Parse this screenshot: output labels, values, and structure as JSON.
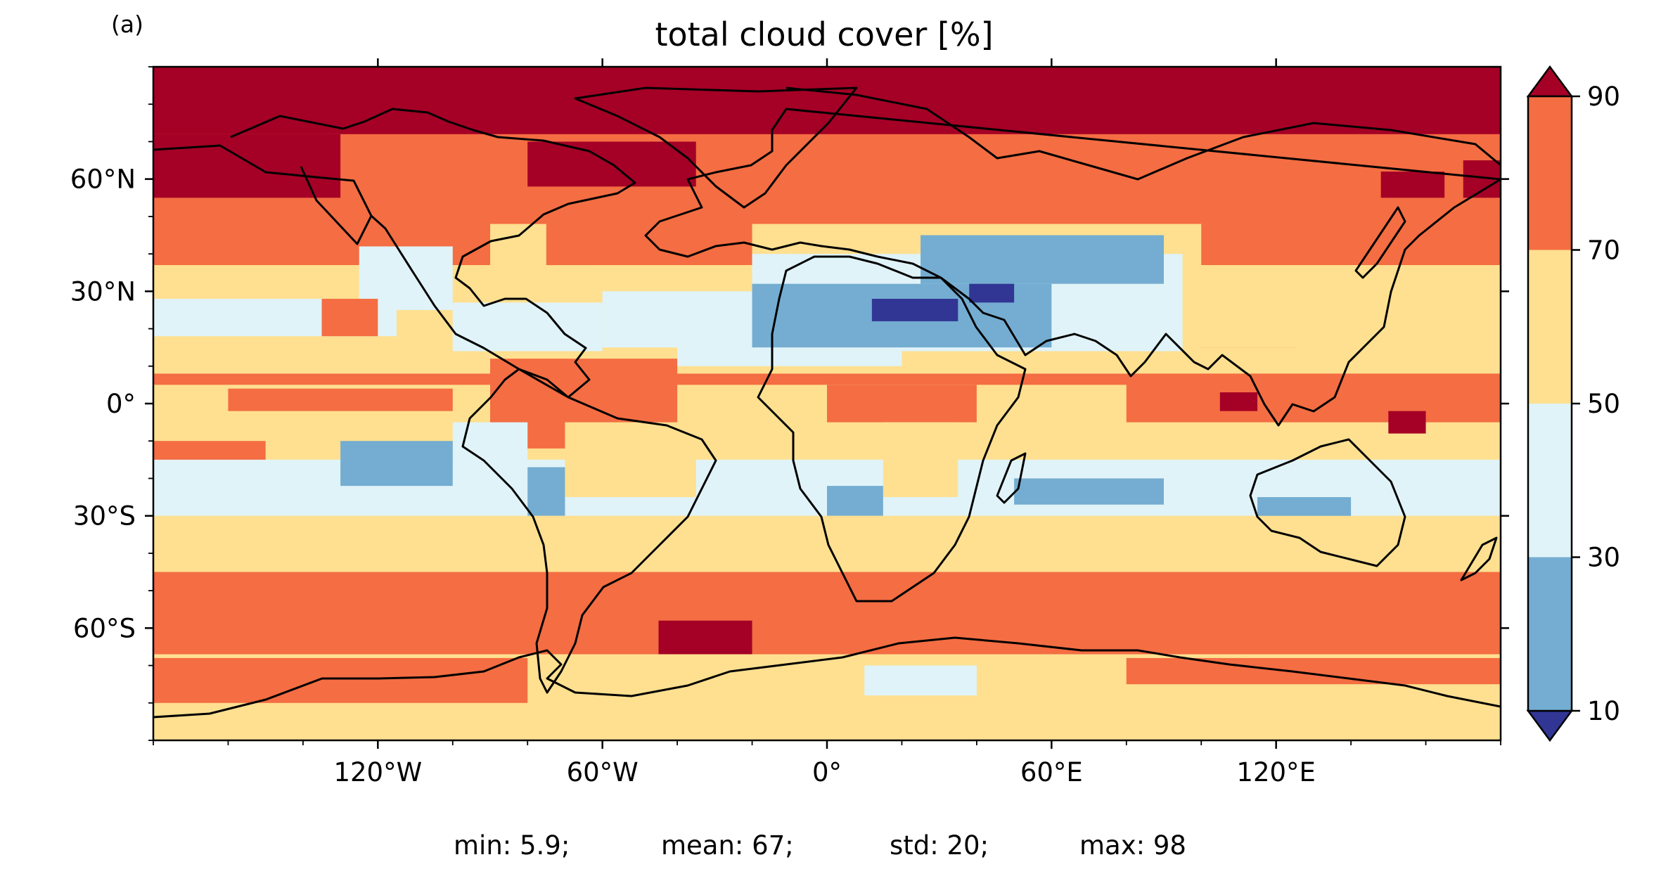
{
  "panel_label": "(a)",
  "title": "total cloud cover [%]",
  "stats": {
    "min": "min: 5.9;",
    "mean": "mean: 67;",
    "std": "std: 20;",
    "max": "max: 98"
  },
  "chart_data": {
    "type": "heatmap",
    "projection": "plate carree (equirectangular) global map with coastlines",
    "title": "total cloud cover [%]",
    "x_axis": {
      "range": [
        -180,
        180
      ],
      "ticks": [
        -120,
        -60,
        0,
        60,
        120
      ],
      "tick_labels": [
        "120°W",
        "60°W",
        "0°",
        "60°E",
        "120°E"
      ]
    },
    "y_axis": {
      "range": [
        -90,
        90
      ],
      "ticks": [
        60,
        30,
        0,
        -30,
        -60
      ],
      "tick_labels": [
        "60°N",
        "30°N",
        "0°",
        "30°S",
        "60°S"
      ]
    },
    "colorbar": {
      "levels": [
        10,
        30,
        50,
        70,
        90
      ],
      "tick_labels": [
        "90",
        "70",
        "50",
        "30",
        "10"
      ],
      "extend": "both",
      "bins": [
        {
          "range": "<10",
          "color": "#313695"
        },
        {
          "range": "10-30",
          "color": "#74add1"
        },
        {
          "range": "30-50",
          "color": "#e0f3f8"
        },
        {
          "range": "50-70",
          "color": "#fee090"
        },
        {
          "range": "70-90",
          "color": "#f46d43"
        },
        {
          "range": ">90",
          "color": "#a50026"
        }
      ]
    },
    "statistics": {
      "min": 5.9,
      "mean": 67,
      "std": 20,
      "max": 98
    },
    "zonal_pattern": [
      {
        "lat_band": "north polar cap",
        "typical_value": ">90"
      },
      {
        "lat_band": "50-70N",
        "typical_value": "70-90"
      },
      {
        "lat_band": "15-35N subtropics",
        "typical_value": "30-70"
      },
      {
        "lat_band": "Sahara / Arabia",
        "typical_value": "<10 to 30"
      },
      {
        "lat_band": "tropics",
        "typical_value": "50-90"
      },
      {
        "lat_band": "15-35S subtropics",
        "typical_value": "30-70"
      },
      {
        "lat_band": "45-65S Southern Ocean",
        "typical_value": "70-90"
      },
      {
        "lat_band": "Antarctica",
        "typical_value": "50-90"
      }
    ]
  }
}
